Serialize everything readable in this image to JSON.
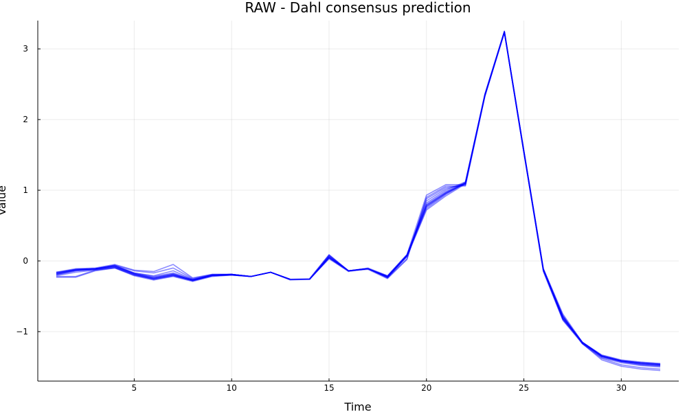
{
  "chart_data": {
    "type": "line",
    "title": "RAW - Dahl consensus prediction",
    "xlabel": "Time",
    "ylabel": "Value",
    "xlim": [
      0.05,
      32.95
    ],
    "ylim": [
      -1.7,
      3.4
    ],
    "xticks": [
      5,
      10,
      15,
      20,
      25,
      30
    ],
    "xtick_labels": [
      "5",
      "10",
      "15",
      "20",
      "25",
      "30"
    ],
    "yticks": [
      -1,
      0,
      1,
      2,
      3
    ],
    "ytick_labels": [
      "−1",
      "0",
      "1",
      "2",
      "3"
    ],
    "grid": true,
    "legend": "none",
    "series_color": "#0000ff",
    "x": [
      1,
      2,
      3,
      4,
      5,
      6,
      7,
      8,
      9,
      10,
      11,
      12,
      13,
      14,
      15,
      16,
      17,
      18,
      19,
      20,
      21,
      22,
      23,
      24,
      25,
      26,
      27,
      28,
      29,
      30,
      31,
      32
    ],
    "series": [
      {
        "values": [
          -0.17,
          -0.12,
          -0.11,
          -0.07,
          -0.17,
          -0.22,
          -0.17,
          -0.26,
          -0.2,
          -0.19,
          -0.22,
          -0.16,
          -0.26,
          -0.26,
          0.07,
          -0.14,
          -0.11,
          -0.22,
          0.08,
          0.78,
          0.96,
          1.1,
          2.35,
          3.24,
          1.55,
          -0.13,
          -0.81,
          -1.15,
          -1.34,
          -1.41,
          -1.44,
          -1.46
        ]
      },
      {
        "values": [
          -0.18,
          -0.12,
          -0.11,
          -0.07,
          -0.18,
          -0.24,
          -0.19,
          -0.27,
          -0.2,
          -0.19,
          -0.22,
          -0.16,
          -0.26,
          -0.26,
          0.06,
          -0.14,
          -0.11,
          -0.22,
          0.08,
          0.8,
          0.98,
          1.11,
          2.35,
          3.24,
          1.55,
          -0.12,
          -0.8,
          -1.15,
          -1.35,
          -1.42,
          -1.45,
          -1.47
        ]
      },
      {
        "values": [
          -0.19,
          -0.13,
          -0.12,
          -0.08,
          -0.19,
          -0.25,
          -0.2,
          -0.27,
          -0.21,
          -0.19,
          -0.22,
          -0.16,
          -0.26,
          -0.26,
          0.05,
          -0.14,
          -0.11,
          -0.23,
          0.07,
          0.76,
          0.95,
          1.1,
          2.34,
          3.24,
          1.54,
          -0.13,
          -0.82,
          -1.16,
          -1.35,
          -1.42,
          -1.46,
          -1.48
        ]
      },
      {
        "values": [
          -0.2,
          -0.14,
          -0.12,
          -0.09,
          -0.2,
          -0.26,
          -0.21,
          -0.28,
          -0.21,
          -0.2,
          -0.22,
          -0.16,
          -0.26,
          -0.26,
          0.04,
          -0.14,
          -0.11,
          -0.23,
          0.07,
          0.74,
          0.94,
          1.1,
          2.34,
          3.24,
          1.54,
          -0.14,
          -0.83,
          -1.16,
          -1.36,
          -1.43,
          -1.47,
          -1.49
        ]
      },
      {
        "values": [
          -0.16,
          -0.12,
          -0.11,
          -0.06,
          -0.17,
          -0.21,
          -0.14,
          -0.26,
          -0.2,
          -0.19,
          -0.22,
          -0.16,
          -0.26,
          -0.26,
          0.08,
          -0.14,
          -0.11,
          -0.21,
          0.09,
          0.82,
          1.0,
          1.12,
          2.36,
          3.25,
          1.56,
          -0.11,
          -0.79,
          -1.15,
          -1.34,
          -1.41,
          -1.44,
          -1.46
        ]
      },
      {
        "values": [
          -0.21,
          -0.16,
          -0.13,
          -0.1,
          -0.21,
          -0.27,
          -0.22,
          -0.29,
          -0.22,
          -0.2,
          -0.22,
          -0.16,
          -0.27,
          -0.26,
          0.03,
          -0.15,
          -0.11,
          -0.24,
          0.06,
          0.72,
          0.92,
          1.09,
          2.33,
          3.23,
          1.53,
          -0.15,
          -0.84,
          -1.17,
          -1.37,
          -1.44,
          -1.48,
          -1.5
        ]
      },
      {
        "values": [
          -0.18,
          -0.13,
          -0.11,
          -0.08,
          -0.18,
          -0.23,
          -0.18,
          -0.27,
          -0.2,
          -0.19,
          -0.22,
          -0.16,
          -0.26,
          -0.26,
          0.06,
          -0.14,
          -0.11,
          -0.22,
          0.08,
          0.79,
          0.97,
          1.11,
          2.35,
          3.24,
          1.55,
          -0.12,
          -0.81,
          -1.15,
          -1.35,
          -1.42,
          -1.45,
          -1.47
        ]
      },
      {
        "values": [
          -0.22,
          -0.22,
          -0.13,
          -0.09,
          -0.19,
          -0.26,
          -0.21,
          -0.28,
          -0.21,
          -0.2,
          -0.22,
          -0.16,
          -0.26,
          -0.26,
          0.05,
          -0.14,
          -0.11,
          -0.24,
          0.03,
          0.88,
          1.04,
          1.07,
          2.34,
          3.24,
          1.54,
          -0.13,
          -0.78,
          -1.17,
          -1.38,
          -1.47,
          -1.51,
          -1.53
        ]
      },
      {
        "values": [
          -0.23,
          -0.23,
          -0.14,
          -0.1,
          -0.2,
          -0.25,
          -0.2,
          -0.28,
          -0.21,
          -0.2,
          -0.22,
          -0.16,
          -0.26,
          -0.26,
          0.04,
          -0.14,
          -0.12,
          -0.25,
          0.02,
          0.9,
          1.06,
          1.06,
          2.33,
          3.23,
          1.53,
          -0.12,
          -0.77,
          -1.17,
          -1.4,
          -1.49,
          -1.53,
          -1.55
        ]
      },
      {
        "values": [
          -0.16,
          -0.11,
          -0.1,
          -0.05,
          -0.13,
          -0.15,
          -0.05,
          -0.24,
          -0.19,
          -0.19,
          -0.22,
          -0.16,
          -0.26,
          -0.25,
          0.09,
          -0.14,
          -0.1,
          -0.21,
          0.09,
          0.93,
          1.08,
          1.08,
          2.36,
          3.25,
          1.56,
          -0.11,
          -0.75,
          -1.15,
          -1.33,
          -1.4,
          -1.43,
          -1.45
        ]
      },
      {
        "values": [
          -0.17,
          -0.13,
          -0.11,
          -0.06,
          -0.14,
          -0.17,
          -0.1,
          -0.25,
          -0.19,
          -0.19,
          -0.22,
          -0.16,
          -0.26,
          -0.26,
          0.08,
          -0.14,
          -0.11,
          -0.22,
          0.08,
          0.85,
          1.02,
          1.09,
          2.35,
          3.24,
          1.55,
          -0.12,
          -0.78,
          -1.15,
          -1.34,
          -1.41,
          -1.44,
          -1.46
        ]
      },
      {
        "values": [
          -0.19,
          -0.14,
          -0.12,
          -0.07,
          -0.18,
          -0.24,
          -0.19,
          -0.27,
          -0.2,
          -0.19,
          -0.22,
          -0.16,
          -0.26,
          -0.26,
          0.05,
          -0.14,
          -0.11,
          -0.23,
          0.07,
          0.77,
          0.96,
          1.1,
          2.34,
          3.24,
          1.54,
          -0.13,
          -0.82,
          -1.16,
          -1.35,
          -1.42,
          -1.46,
          -1.48
        ]
      }
    ]
  }
}
